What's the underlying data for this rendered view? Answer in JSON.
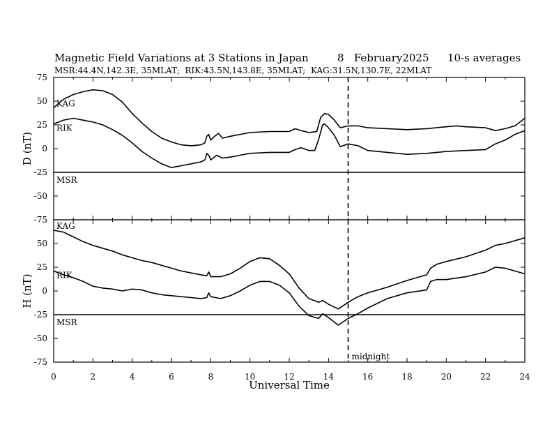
{
  "title_parts": {
    "main": "Magnetic Field Variations at 3 Stations in Japan",
    "date": "8   February2025",
    "avg": "10-s averages"
  },
  "subtitle": "MSR:44.4N,142.3E, 35MLAT;  RIK:43.5N,143.8E, 35MLAT;  KAG:31.5N,130.7E, 22MLAT",
  "midnight_label": "midnight",
  "chart_data": [
    {
      "type": "line",
      "ylabel": "D (nT)",
      "xlabel": "",
      "xlim": [
        0,
        24
      ],
      "ylim": [
        -75,
        75
      ],
      "y_ticks": [
        75,
        50,
        25,
        0,
        -25,
        -50,
        -75
      ],
      "midnight_x": 15,
      "baseline_y": -25,
      "series": [
        {
          "name": "KAG",
          "points": [
            [
              0,
              43
            ],
            [
              0.5,
              52
            ],
            [
              1,
              57
            ],
            [
              1.5,
              60
            ],
            [
              2,
              62
            ],
            [
              2.5,
              61
            ],
            [
              3,
              57
            ],
            [
              3.5,
              49
            ],
            [
              4,
              37
            ],
            [
              4.5,
              27
            ],
            [
              5,
              18
            ],
            [
              5.5,
              11
            ],
            [
              6,
              7
            ],
            [
              6.5,
              4
            ],
            [
              7,
              3
            ],
            [
              7.5,
              4
            ],
            [
              7.7,
              6
            ],
            [
              7.8,
              13
            ],
            [
              7.9,
              15
            ],
            [
              8,
              9
            ],
            [
              8.2,
              13
            ],
            [
              8.4,
              16
            ],
            [
              8.6,
              11
            ],
            [
              9,
              13
            ],
            [
              9.5,
              15
            ],
            [
              10,
              17
            ],
            [
              11,
              18
            ],
            [
              12,
              18
            ],
            [
              12.3,
              21
            ],
            [
              12.6,
              19
            ],
            [
              13,
              17
            ],
            [
              13.4,
              18
            ],
            [
              13.6,
              33
            ],
            [
              13.8,
              37
            ],
            [
              14,
              36
            ],
            [
              14.3,
              30
            ],
            [
              14.6,
              22
            ],
            [
              15,
              24
            ],
            [
              15.5,
              24
            ],
            [
              16,
              22
            ],
            [
              17,
              21
            ],
            [
              18,
              20
            ],
            [
              19,
              21
            ],
            [
              20,
              23
            ],
            [
              20.5,
              24
            ],
            [
              21,
              23
            ],
            [
              22,
              22
            ],
            [
              22.5,
              19
            ],
            [
              23,
              21
            ],
            [
              23.5,
              24
            ],
            [
              24,
              32
            ]
          ]
        },
        {
          "name": "RIK",
          "points": [
            [
              0,
              26
            ],
            [
              0.5,
              30
            ],
            [
              1,
              32
            ],
            [
              1.5,
              30
            ],
            [
              2,
              28
            ],
            [
              2.5,
              25
            ],
            [
              3,
              20
            ],
            [
              3.5,
              14
            ],
            [
              4,
              6
            ],
            [
              4.5,
              -3
            ],
            [
              5,
              -10
            ],
            [
              5.5,
              -16
            ],
            [
              6,
              -20
            ],
            [
              6.5,
              -18
            ],
            [
              7,
              -16
            ],
            [
              7.5,
              -14
            ],
            [
              7.7,
              -12
            ],
            [
              7.8,
              -5
            ],
            [
              7.9,
              -7
            ],
            [
              8,
              -12
            ],
            [
              8.3,
              -7
            ],
            [
              8.6,
              -10
            ],
            [
              9,
              -9
            ],
            [
              9.5,
              -7
            ],
            [
              10,
              -5
            ],
            [
              11,
              -4
            ],
            [
              12,
              -4
            ],
            [
              12.3,
              -1
            ],
            [
              12.6,
              1
            ],
            [
              13,
              -2
            ],
            [
              13.3,
              -2
            ],
            [
              13.5,
              10
            ],
            [
              13.7,
              25
            ],
            [
              13.8,
              26
            ],
            [
              14,
              22
            ],
            [
              14.3,
              14
            ],
            [
              14.6,
              2
            ],
            [
              15,
              5
            ],
            [
              15.5,
              3
            ],
            [
              16,
              -2
            ],
            [
              17,
              -4
            ],
            [
              18,
              -6
            ],
            [
              19,
              -5
            ],
            [
              20,
              -3
            ],
            [
              21,
              -2
            ],
            [
              22,
              -1
            ],
            [
              22.5,
              5
            ],
            [
              23,
              9
            ],
            [
              23.5,
              15
            ],
            [
              24,
              19
            ]
          ]
        },
        {
          "name": "MSR",
          "points": [
            [
              0,
              -25
            ],
            [
              24,
              -25
            ]
          ]
        }
      ]
    },
    {
      "type": "line",
      "ylabel": "H (nT)",
      "xlabel": "Universal Time",
      "xlim": [
        0,
        24
      ],
      "ylim": [
        -75,
        75
      ],
      "x_ticks": [
        0,
        2,
        4,
        6,
        8,
        10,
        12,
        14,
        16,
        18,
        20,
        22,
        24
      ],
      "y_ticks": [
        50,
        25,
        0,
        -25,
        -50,
        -75
      ],
      "midnight_x": 15,
      "baseline_y": -25,
      "series": [
        {
          "name": "KAG",
          "points": [
            [
              0,
              64
            ],
            [
              0.5,
              62
            ],
            [
              1,
              57
            ],
            [
              1.5,
              52
            ],
            [
              2,
              48
            ],
            [
              2.5,
              45
            ],
            [
              3,
              42
            ],
            [
              3.5,
              38
            ],
            [
              4,
              35
            ],
            [
              4.5,
              32
            ],
            [
              5,
              30
            ],
            [
              5.5,
              27
            ],
            [
              6,
              24
            ],
            [
              6.5,
              21
            ],
            [
              7,
              19
            ],
            [
              7.5,
              17
            ],
            [
              7.8,
              16
            ],
            [
              7.9,
              20
            ],
            [
              8,
              15
            ],
            [
              8.5,
              15
            ],
            [
              9,
              18
            ],
            [
              9.5,
              24
            ],
            [
              10,
              31
            ],
            [
              10.5,
              35
            ],
            [
              11,
              34
            ],
            [
              11.5,
              27
            ],
            [
              12,
              18
            ],
            [
              12.5,
              3
            ],
            [
              13,
              -8
            ],
            [
              13.5,
              -12
            ],
            [
              13.7,
              -10
            ],
            [
              14,
              -14
            ],
            [
              14.5,
              -19
            ],
            [
              15,
              -12
            ],
            [
              15.5,
              -6
            ],
            [
              16,
              -2
            ],
            [
              17,
              4
            ],
            [
              18,
              11
            ],
            [
              19,
              17
            ],
            [
              19.2,
              24
            ],
            [
              19.5,
              28
            ],
            [
              20,
              31
            ],
            [
              21,
              36
            ],
            [
              22,
              43
            ],
            [
              22.5,
              48
            ],
            [
              23,
              50
            ],
            [
              24,
              56
            ]
          ]
        },
        {
          "name": "RIK",
          "points": [
            [
              0,
              21
            ],
            [
              0.5,
              17
            ],
            [
              1,
              14
            ],
            [
              1.5,
              10
            ],
            [
              2,
              5
            ],
            [
              2.5,
              3
            ],
            [
              3,
              2
            ],
            [
              3.5,
              0
            ],
            [
              4,
              2
            ],
            [
              4.5,
              1
            ],
            [
              5,
              -2
            ],
            [
              5.5,
              -4
            ],
            [
              6,
              -5
            ],
            [
              6.5,
              -6
            ],
            [
              7,
              -7
            ],
            [
              7.5,
              -8
            ],
            [
              7.8,
              -7
            ],
            [
              7.9,
              -2
            ],
            [
              8,
              -6
            ],
            [
              8.5,
              -8
            ],
            [
              9,
              -5
            ],
            [
              9.5,
              0
            ],
            [
              10,
              6
            ],
            [
              10.5,
              10
            ],
            [
              11,
              10
            ],
            [
              11.5,
              6
            ],
            [
              12,
              -2
            ],
            [
              12.5,
              -16
            ],
            [
              13,
              -26
            ],
            [
              13.5,
              -29
            ],
            [
              13.7,
              -24
            ],
            [
              14,
              -28
            ],
            [
              14.5,
              -36
            ],
            [
              15,
              -29
            ],
            [
              15.5,
              -24
            ],
            [
              16,
              -18
            ],
            [
              17,
              -8
            ],
            [
              18,
              -2
            ],
            [
              19,
              1
            ],
            [
              19.2,
              10
            ],
            [
              19.5,
              12
            ],
            [
              20,
              12
            ],
            [
              21,
              15
            ],
            [
              22,
              20
            ],
            [
              22.5,
              25
            ],
            [
              23,
              24
            ],
            [
              24,
              18
            ]
          ]
        },
        {
          "name": "MSR",
          "points": [
            [
              0,
              -25
            ],
            [
              24,
              -25
            ]
          ]
        }
      ]
    }
  ]
}
